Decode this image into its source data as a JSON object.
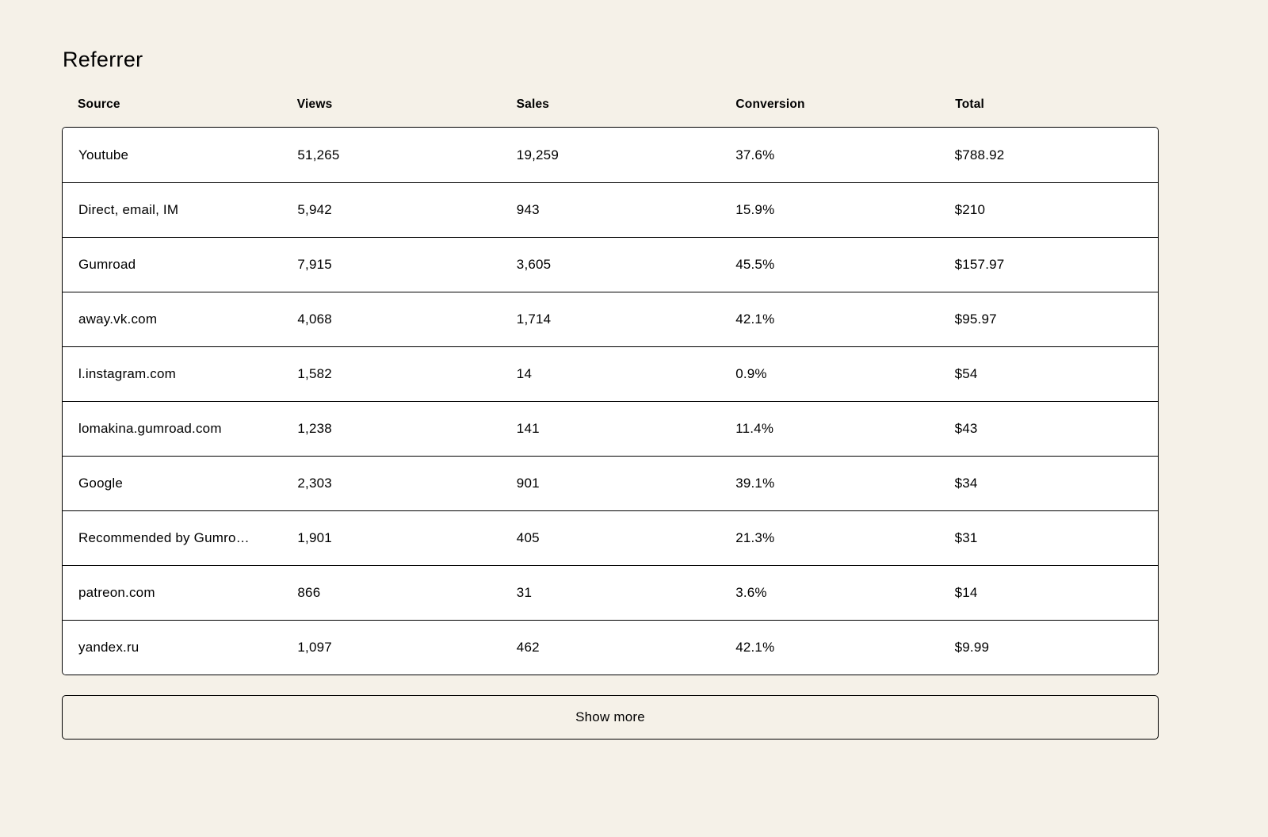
{
  "page": {
    "background_color": "#F5F1E8",
    "text_color": "#000000",
    "card_color": "#FFFFFF",
    "border_color": "#000000"
  },
  "section": {
    "title": "Referrer"
  },
  "table": {
    "columns": [
      "Source",
      "Views",
      "Sales",
      "Conversion",
      "Total"
    ],
    "rows": [
      {
        "source": "Youtube",
        "views": "51,265",
        "sales": "19,259",
        "conversion": "37.6%",
        "total": "$788.92"
      },
      {
        "source": "Direct, email, IM",
        "views": "5,942",
        "sales": "943",
        "conversion": "15.9%",
        "total": "$210"
      },
      {
        "source": "Gumroad",
        "views": "7,915",
        "sales": "3,605",
        "conversion": "45.5%",
        "total": "$157.97"
      },
      {
        "source": "away.vk.com",
        "views": "4,068",
        "sales": "1,714",
        "conversion": "42.1%",
        "total": "$95.97"
      },
      {
        "source": "l.instagram.com",
        "views": "1,582",
        "sales": "14",
        "conversion": "0.9%",
        "total": "$54"
      },
      {
        "source": "lomakina.gumroad.com",
        "views": "1,238",
        "sales": "141",
        "conversion": "11.4%",
        "total": "$43"
      },
      {
        "source": "Google",
        "views": "2,303",
        "sales": "901",
        "conversion": "39.1%",
        "total": "$34"
      },
      {
        "source": "Recommended by Gumro…",
        "views": "1,901",
        "sales": "405",
        "conversion": "21.3%",
        "total": "$31"
      },
      {
        "source": "patreon.com",
        "views": "866",
        "sales": "31",
        "conversion": "3.6%",
        "total": "$14"
      },
      {
        "source": "yandex.ru",
        "views": "1,097",
        "sales": "462",
        "conversion": "42.1%",
        "total": "$9.99"
      }
    ]
  },
  "actions": {
    "show_more_label": "Show more"
  }
}
